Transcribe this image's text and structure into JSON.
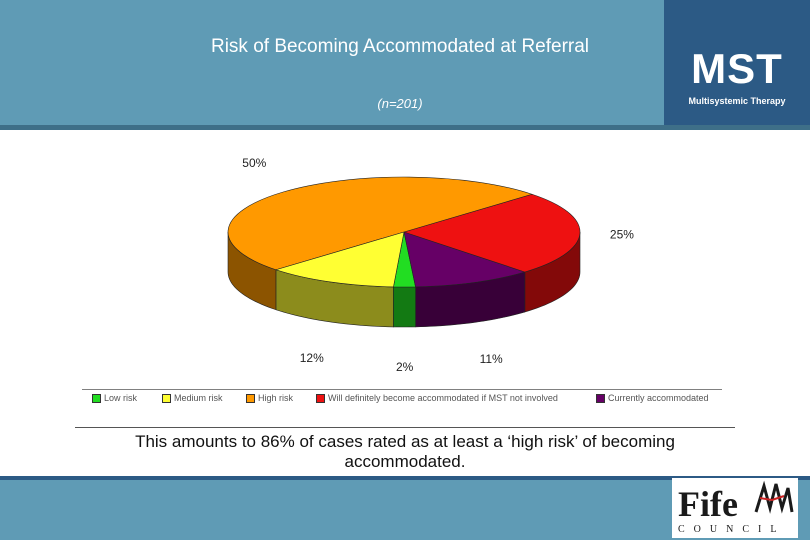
{
  "header": {
    "title": "Risk of Becoming Accommodated at Referral",
    "subtitle": "(n=201)",
    "logo_text": "MST",
    "logo_subtitle": "Multisystemic Therapy"
  },
  "chart_data": {
    "type": "pie",
    "title": "Risk of Becoming Accommodated at Referral",
    "subtitle": "(n=201)",
    "categories": [
      "Low risk",
      "Medium risk",
      "High risk",
      "Will definitely become accommodated if MST not involved",
      "Currently accommodated"
    ],
    "values": [
      2,
      12,
      50,
      25,
      11
    ],
    "data_labels": [
      "2%",
      "12%",
      "50%",
      "25%",
      "11%"
    ],
    "colors": [
      "#22dd22",
      "#ffff33",
      "#ff9900",
      "#ee1111",
      "#660066"
    ],
    "style": "3d",
    "legend_position": "bottom"
  },
  "legend": {
    "items": [
      {
        "label": "Low risk",
        "color": "#22dd22"
      },
      {
        "label": "Medium risk",
        "color": "#ffff33"
      },
      {
        "label": "High risk",
        "color": "#ff9900"
      },
      {
        "label": "Will definitely become accommodated if MST not involved",
        "color": "#ee1111"
      },
      {
        "label": "Currently accommodated",
        "color": "#660066"
      }
    ]
  },
  "summary": "This amounts to 86% of cases rated as at least a ‘high risk’ of becoming accommodated.",
  "footer": {
    "logo_text": "Fife",
    "logo_subtitle": "COUNCIL"
  }
}
